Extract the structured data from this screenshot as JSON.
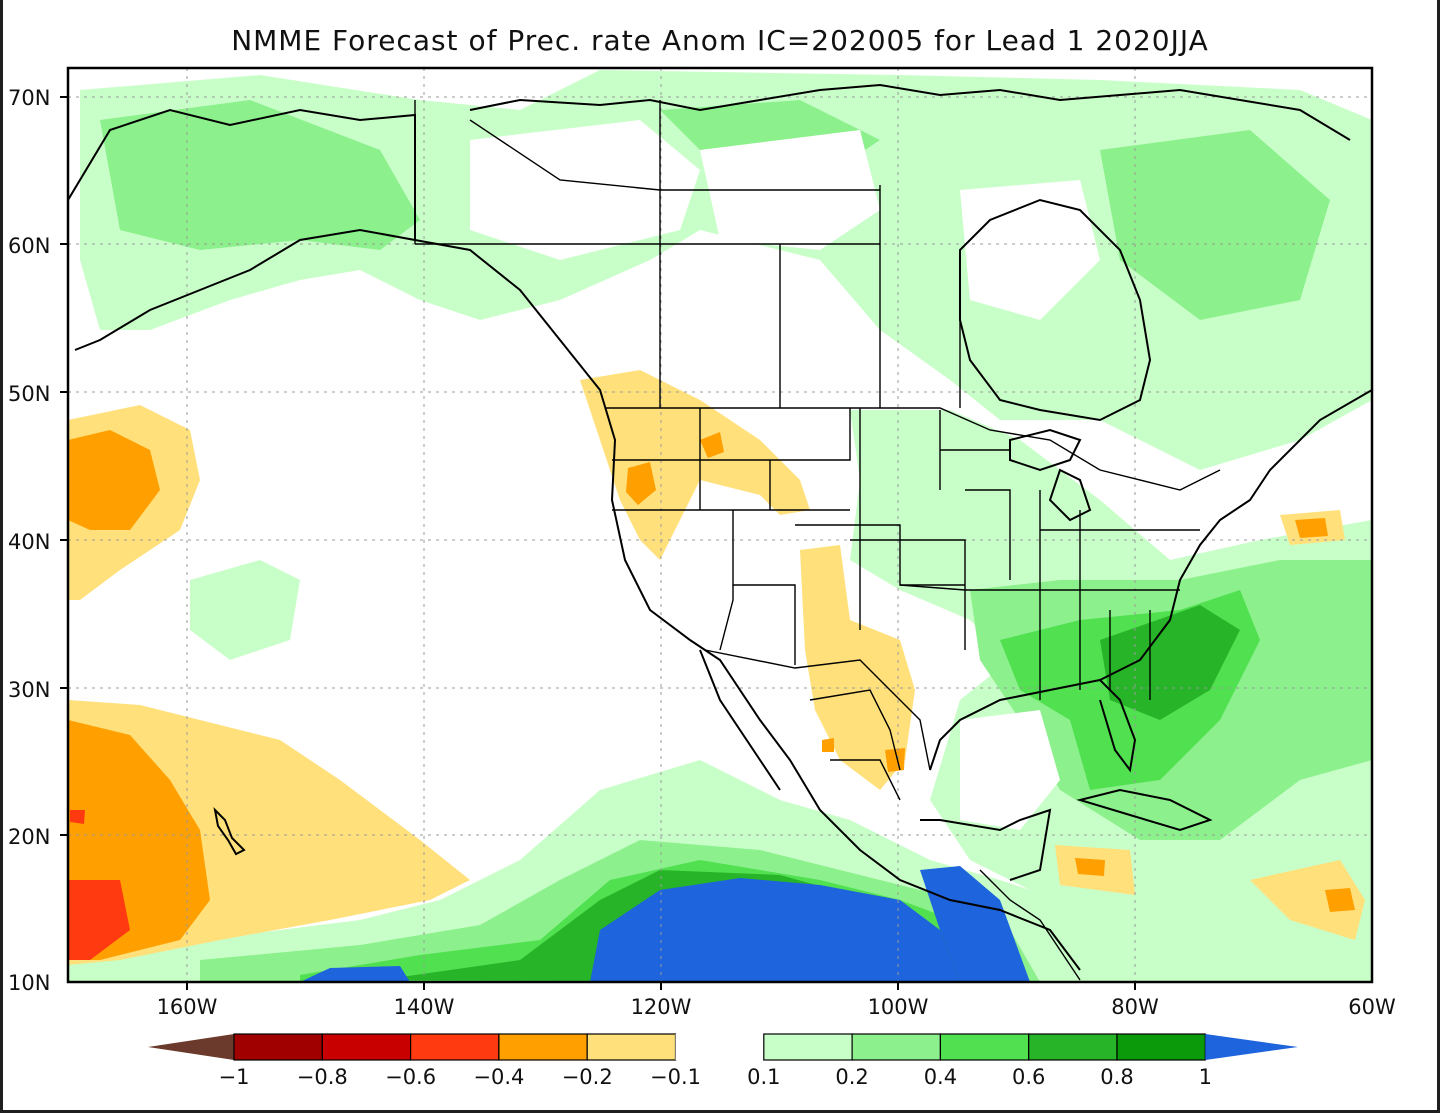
{
  "title": "NMME Forecast of Prec. rate Anom IC=202005 for Lead 1 2020JJA",
  "lat_labels": [
    "70N",
    "60N",
    "50N",
    "40N",
    "30N",
    "20N",
    "10N"
  ],
  "lon_labels": [
    "160W",
    "140W",
    "120W",
    "100W",
    "80W",
    "60W"
  ],
  "colorbar": {
    "labels": [
      "-1",
      "-0.8",
      "-0.6",
      "-0.4",
      "-0.2",
      "-0.1",
      "0.1",
      "0.2",
      "0.4",
      "0.6",
      "0.8",
      "1"
    ],
    "colors": {
      "below_min": "#6b3a2c",
      "b1": "#a10000",
      "b2": "#c80000",
      "b3": "#ff3a10",
      "b4": "#ff9f00",
      "b5": "#ffe07a",
      "neutral": "#ffffff",
      "g1": "#c8ffc8",
      "g2": "#8cf08c",
      "g3": "#50e050",
      "g4": "#28b428",
      "g5": "#0a9a0a",
      "above_max": "#1e64dc"
    }
  },
  "map": {
    "lon_range": [
      "170W",
      "60W"
    ],
    "lat_range": [
      "10N",
      "72N"
    ],
    "grid": true,
    "features": [
      "coastlines",
      "country borders",
      "US state borders",
      "Canadian province borders"
    ]
  }
}
